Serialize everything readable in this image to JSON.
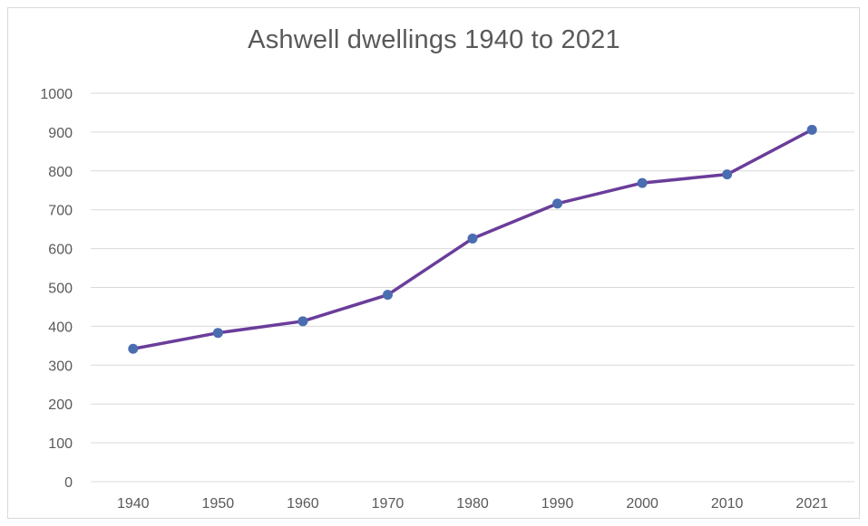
{
  "chart_data": {
    "type": "line",
    "title": "Ashwell dwellings 1940 to 2021",
    "xlabel": "",
    "ylabel": "",
    "categories": [
      "1940",
      "1950",
      "1960",
      "1970",
      "1980",
      "1990",
      "2000",
      "2010",
      "2021"
    ],
    "series": [
      {
        "values": [
          342,
          383,
          413,
          481,
          626,
          716,
          769,
          791,
          906
        ]
      }
    ],
    "ylim": [
      0,
      1000
    ],
    "yticks": [
      "0",
      "100",
      "200",
      "300",
      "400",
      "500",
      "600",
      "700",
      "800",
      "900",
      "1000"
    ],
    "grid": true,
    "legend": "none",
    "colors": {
      "line": "#6a3d9a",
      "marker": "#4a6db0",
      "grid": "#d9d9d9",
      "text": "#595959"
    }
  }
}
